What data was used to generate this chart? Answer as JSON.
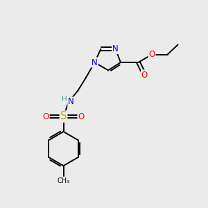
{
  "background_color": "#ebebeb",
  "atom_colors": {
    "C": "#000000",
    "N": "#0000cc",
    "O": "#ff0000",
    "S": "#ccaa00",
    "H": "#559999"
  },
  "figsize": [
    3.0,
    3.0
  ],
  "dpi": 100,
  "lw": 1.4,
  "fs": 8.5
}
